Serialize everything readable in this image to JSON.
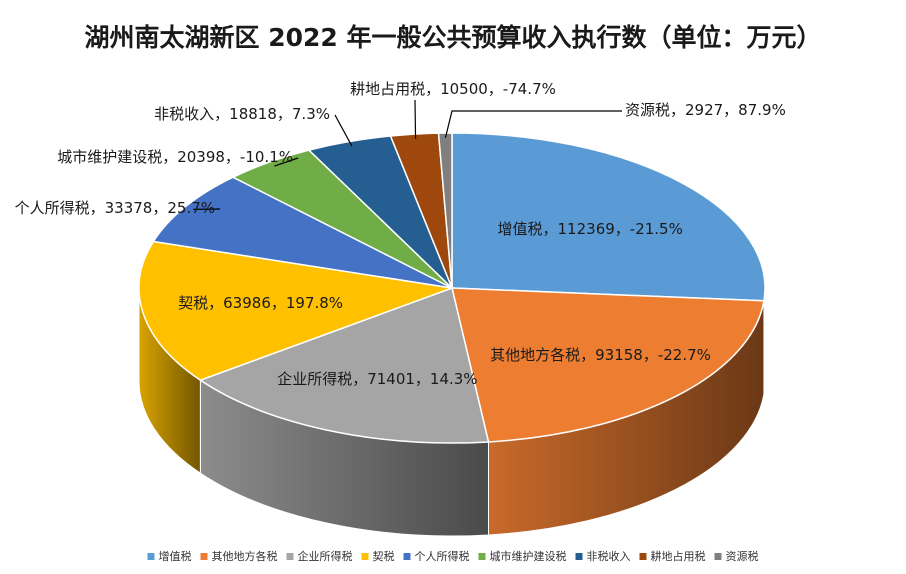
{
  "chart_data": {
    "type": "pie",
    "title": "湖州南太湖新区 2022 年一般公共预算收入执行数（单位：万元）",
    "legend_position": "bottom",
    "three_d": true,
    "slices": [
      {
        "name": "增值税",
        "value": 112369,
        "change": "-21.5%",
        "label": "增值税，112369，-21.5%",
        "color": "#5B9BD5"
      },
      {
        "name": "其他地方各税",
        "value": 93158,
        "change": "-22.7%",
        "label": "其他地方各税，93158，-22.7%",
        "color": "#ED7D31"
      },
      {
        "name": "企业所得税",
        "value": 71401,
        "change": "14.3%",
        "label": "企业所得税，71401，14.3%",
        "color": "#A5A5A5"
      },
      {
        "name": "契税",
        "value": 63986,
        "change": "197.8%",
        "label": "契税，63986，197.8%",
        "color": "#FFC000"
      },
      {
        "name": "个人所得税",
        "value": 33378,
        "change": "25.7%",
        "label": "个人所得税，33378，25.7%",
        "color": "#4472C4"
      },
      {
        "name": "城市维护建设税",
        "value": 20398,
        "change": "-10.1%",
        "label": "城市维护建设税，20398，-10.1%",
        "color": "#70AD47"
      },
      {
        "name": "非税收入",
        "value": 18818,
        "change": "7.3%",
        "label": "非税收入，18818，7.3%",
        "color": "#255E91"
      },
      {
        "name": "耕地占用税",
        "value": 10500,
        "change": "-74.7%",
        "label": "耕地占用税，10500，-74.7%",
        "color": "#9E480E"
      },
      {
        "name": "资源税",
        "value": 2927,
        "change": "87.9%",
        "label": "资源税，2927，87.9%",
        "color": "#7F7F7F"
      }
    ]
  }
}
